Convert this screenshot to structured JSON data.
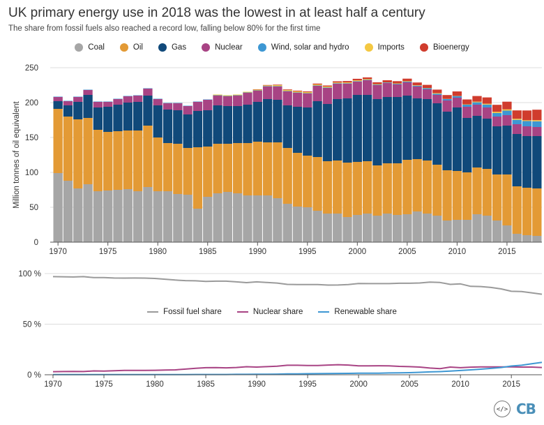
{
  "title": "UK primary energy use in 2018 was the lowest in at least half a century",
  "subtitle": "The share from fossil fuels also reached a record low, falling below 80% for the first time",
  "logo_text": "CB",
  "embed_icon": "</>",
  "chart_data": [
    {
      "type": "bar",
      "stacked": true,
      "ylabel": "Million tonnes of oil equivalent",
      "ylim": [
        0,
        250
      ],
      "yticks": [
        "0",
        "50",
        "100",
        "150",
        "200",
        "250"
      ],
      "xticks": [
        "1970",
        "1975",
        "1980",
        "1985",
        "1990",
        "1995",
        "2000",
        "2005",
        "2010",
        "2015"
      ],
      "grid": true,
      "legend_position": "top",
      "categories": [
        1970,
        1971,
        1972,
        1973,
        1974,
        1975,
        1976,
        1977,
        1978,
        1979,
        1980,
        1981,
        1982,
        1983,
        1984,
        1985,
        1986,
        1987,
        1988,
        1989,
        1990,
        1991,
        1992,
        1993,
        1994,
        1995,
        1996,
        1997,
        1998,
        1999,
        2000,
        2001,
        2002,
        2003,
        2004,
        2005,
        2006,
        2007,
        2008,
        2009,
        2010,
        2011,
        2012,
        2013,
        2014,
        2015,
        2016,
        2017,
        2018
      ],
      "series": [
        {
          "name": "Coal",
          "color": "#a6a6a6",
          "values": [
            99,
            88,
            77,
            83,
            73,
            74,
            75,
            76,
            73,
            79,
            73,
            73,
            69,
            68,
            48,
            65,
            70,
            72,
            70,
            67,
            67,
            67,
            63,
            55,
            51,
            50,
            45,
            41,
            41,
            36,
            39,
            41,
            38,
            41,
            39,
            40,
            44,
            41,
            38,
            31,
            32,
            32,
            40,
            38,
            31,
            24,
            12,
            10,
            9
          ]
        },
        {
          "name": "Oil",
          "color": "#e39a35",
          "values": [
            92,
            92,
            99,
            95,
            88,
            84,
            84,
            84,
            87,
            88,
            77,
            69,
            72,
            67,
            88,
            72,
            71,
            69,
            72,
            75,
            77,
            76,
            80,
            80,
            77,
            74,
            77,
            75,
            76,
            78,
            76,
            75,
            72,
            72,
            74,
            78,
            75,
            76,
            73,
            72,
            70,
            68,
            67,
            67,
            66,
            73,
            68,
            68,
            68
          ]
        },
        {
          "name": "Gas",
          "color": "#10497a",
          "values": [
            11,
            16,
            25,
            33,
            32,
            36,
            38,
            40,
            41,
            43,
            46,
            48,
            48,
            48,
            52,
            52,
            55,
            54,
            53,
            55,
            57,
            62,
            61,
            61,
            66,
            69,
            80,
            82,
            88,
            92,
            96,
            95,
            95,
            95,
            95,
            92,
            87,
            88,
            88,
            84,
            91,
            78,
            74,
            72,
            69,
            70,
            75,
            74,
            75
          ]
        },
        {
          "name": "Nuclear",
          "color": "#a84384",
          "values": [
            6,
            6,
            7,
            7,
            8,
            7,
            8,
            9,
            9,
            10,
            9,
            9,
            10,
            12,
            13,
            15,
            14,
            14,
            15,
            17,
            16,
            18,
            19,
            20,
            20,
            20,
            22,
            23,
            22,
            21,
            19,
            21,
            20,
            20,
            18,
            19,
            17,
            14,
            12,
            16,
            14,
            16,
            16,
            16,
            14,
            15,
            14,
            14,
            13
          ]
        },
        {
          "name": "Wind, solar and hydro",
          "color": "#3d97d3",
          "values": [
            0.5,
            0.5,
            0.5,
            0.5,
            0.5,
            0.5,
            0.5,
            0.5,
            0.5,
            0.5,
            0.5,
            0.5,
            0.5,
            0.5,
            0.5,
            0.5,
            0.5,
            0.5,
            0.5,
            0.5,
            0.5,
            0.6,
            0.6,
            0.6,
            0.6,
            0.6,
            0.6,
            0.7,
            0.7,
            0.7,
            0.7,
            0.7,
            0.8,
            0.8,
            0.9,
            1,
            1.2,
            1.5,
            1.7,
            2,
            2.3,
            3,
            3.4,
            4.2,
            5,
            6.5,
            6.3,
            7.5,
            8.2
          ]
        },
        {
          "name": "Imports",
          "color": "#f4c842",
          "values": [
            0,
            0,
            0,
            0,
            0,
            0,
            0,
            0,
            0,
            0,
            0,
            0,
            0,
            0,
            0,
            0,
            1,
            1,
            1,
            1,
            1,
            1,
            1.5,
            1.5,
            1.5,
            1.4,
            1.4,
            1.4,
            1.1,
            1.2,
            1.2,
            1,
            0.7,
            0.2,
            0.6,
            0.7,
            0.6,
            0.4,
            0.9,
            0.3,
            0.2,
            0.5,
            1,
            1.2,
            1.8,
            1.8,
            1.5,
            1.2,
            1.6
          ]
        },
        {
          "name": "Bioenergy",
          "color": "#d03c2d",
          "values": [
            0,
            0,
            0,
            0,
            0,
            0,
            0,
            0,
            0,
            0,
            0,
            0,
            0,
            0,
            0,
            0,
            0,
            0,
            0,
            0,
            0.5,
            0.6,
            0.7,
            0.8,
            1,
            1,
            1.2,
            1.4,
            1.7,
            2,
            2.2,
            2.4,
            2.6,
            3,
            3.2,
            3.6,
            4,
            4.5,
            5,
            5.5,
            6.5,
            7,
            8,
            9,
            10,
            11,
            12,
            14,
            15
          ]
        }
      ]
    },
    {
      "type": "line",
      "ylim": [
        0,
        100
      ],
      "yticks": [
        "0 %",
        "50 %",
        "100 %"
      ],
      "xticks": [
        "1970",
        "1975",
        "1980",
        "1985",
        "1990",
        "1995",
        "2000",
        "2005",
        "2010",
        "2015"
      ],
      "legend_position": "middle",
      "x": [
        1970,
        1971,
        1972,
        1973,
        1974,
        1975,
        1976,
        1977,
        1978,
        1979,
        1980,
        1981,
        1982,
        1983,
        1984,
        1985,
        1986,
        1987,
        1988,
        1989,
        1990,
        1991,
        1992,
        1993,
        1994,
        1995,
        1996,
        1997,
        1998,
        1999,
        2000,
        2001,
        2002,
        2003,
        2004,
        2005,
        2006,
        2007,
        2008,
        2009,
        2010,
        2011,
        2012,
        2013,
        2014,
        2015,
        2016,
        2017,
        2018
      ],
      "series": [
        {
          "name": "Fossil fuel share",
          "color": "#9a9a9a",
          "values": [
            97,
            96.8,
            96.6,
            97,
            96,
            96,
            95.6,
            95.5,
            95.6,
            95.5,
            95.2,
            94.4,
            93.6,
            93,
            92.8,
            92.2,
            92.5,
            92.5,
            91.8,
            91,
            91.8,
            91.2,
            90.6,
            89.3,
            89.1,
            89.2,
            89.1,
            88.6,
            88.7,
            89.2,
            90.2,
            90.1,
            90.1,
            90.1,
            90.4,
            90.4,
            90.7,
            91.6,
            91.2,
            89.3,
            89.8,
            87.4,
            87.2,
            86.3,
            84.8,
            82.5,
            82.2,
            81,
            79.6
          ]
        },
        {
          "name": "Nuclear share",
          "color": "#a84384",
          "values": [
            3,
            3.2,
            3.3,
            3.2,
            3.8,
            3.6,
            4,
            4.3,
            4.3,
            4.3,
            4.4,
            4.6,
            4.8,
            5.6,
            6.4,
            7,
            7.1,
            6.8,
            7.2,
            7.9,
            7.6,
            8,
            8.4,
            9.4,
            9.4,
            9.2,
            9.2,
            9.6,
            9.9,
            9.6,
            8.8,
            8.8,
            8.9,
            8.8,
            8.3,
            8,
            7.6,
            6.6,
            6,
            7.6,
            7,
            7.5,
            7.7,
            7.8,
            7.8,
            7.8,
            7.6,
            7.6,
            7.2
          ]
        },
        {
          "name": "Renewable share",
          "color": "#3d97d3",
          "values": [
            0.2,
            0.2,
            0.2,
            0.2,
            0.2,
            0.2,
            0.2,
            0.2,
            0.2,
            0.2,
            0.2,
            0.2,
            0.2,
            0.2,
            0.3,
            0.3,
            0.3,
            0.3,
            0.4,
            0.4,
            0.5,
            0.5,
            0.6,
            0.8,
            0.9,
            1,
            1.1,
            1.2,
            1.3,
            1.4,
            1.5,
            1.5,
            1.6,
            1.8,
            1.9,
            2.1,
            2.4,
            2.8,
            3.1,
            3.6,
            4.2,
            4.8,
            5.5,
            6.3,
            7.2,
            8.6,
            9.4,
            10.8,
            12.2
          ]
        }
      ]
    }
  ]
}
